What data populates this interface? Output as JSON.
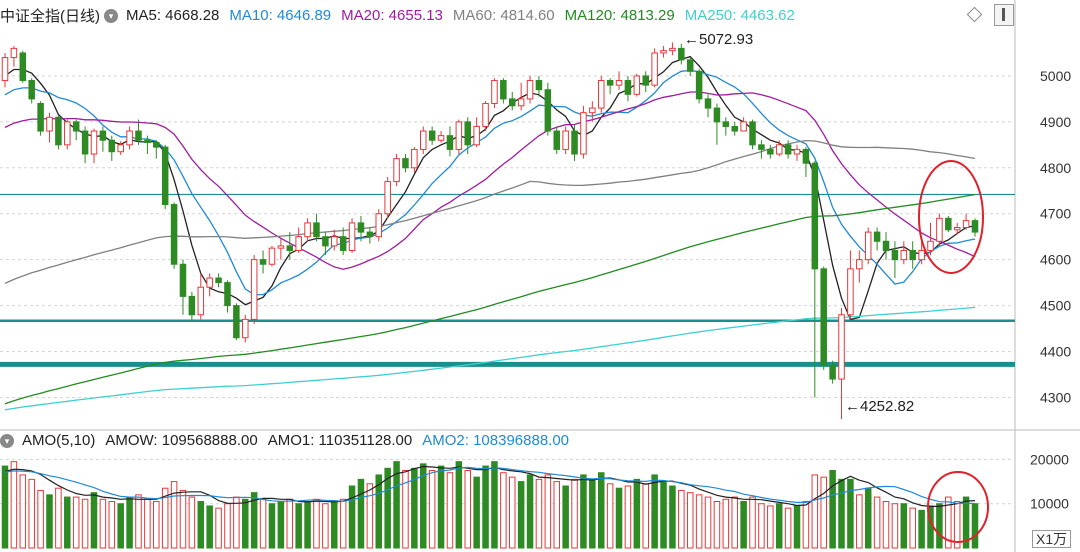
{
  "header": {
    "title": "中证全指(日线)",
    "ma": [
      {
        "label": "MA5: 4668.28",
        "color": "#222222"
      },
      {
        "label": "MA10: 4646.89",
        "color": "#1f8ad6"
      },
      {
        "label": "MA20: 4655.13",
        "color": "#a01ba0"
      },
      {
        "label": "MA60: 4814.60",
        "color": "#808080"
      },
      {
        "label": "MA120: 4813.29",
        "color": "#228b22"
      },
      {
        "label": "MA250: 4463.62",
        "color": "#3fd0d0"
      }
    ]
  },
  "volume_header": {
    "title": "AMO(5,10)",
    "amow": "AMOW: 109568888.00",
    "amo1": "AMO1: 110351128.00",
    "amo2": "AMO2: 108396888.00"
  },
  "annotations": {
    "high": "5072.93",
    "low": "4252.82"
  },
  "unit_label": "X1万",
  "colors": {
    "up": "#e8383b",
    "down": "#2e8b24",
    "support": "#1a8f8f",
    "circle": "#e0202a"
  },
  "chart_data": {
    "type": "candlestick",
    "y_axis_price": {
      "ticks": [
        4300,
        4400,
        4500,
        4600,
        4700,
        4800,
        4900,
        5000
      ],
      "range": [
        4240,
        5100
      ]
    },
    "y_axis_volume": {
      "ticks": [
        10000,
        20000
      ],
      "range": [
        0,
        21000
      ]
    },
    "horizontal_lines": [
      4742,
      4467,
      4372
    ],
    "candles": [
      [
        4990,
        5040,
        5050,
        4975
      ],
      [
        5040,
        5060,
        5065,
        5020
      ],
      [
        5050,
        4990,
        5055,
        4985
      ],
      [
        4990,
        4950,
        4995,
        4940
      ],
      [
        4940,
        4880,
        4945,
        4870
      ],
      [
        4880,
        4910,
        4920,
        4855
      ],
      [
        4910,
        4850,
        4915,
        4840
      ],
      [
        4850,
        4900,
        4905,
        4840
      ],
      [
        4900,
        4880,
        4905,
        4860
      ],
      [
        4880,
        4830,
        4890,
        4810
      ],
      [
        4830,
        4880,
        4885,
        4810
      ],
      [
        4880,
        4860,
        4890,
        4835
      ],
      [
        4860,
        4835,
        4870,
        4815
      ],
      [
        4835,
        4850,
        4858,
        4828
      ],
      [
        4850,
        4880,
        4890,
        4840
      ],
      [
        4880,
        4860,
        4905,
        4850
      ],
      [
        4860,
        4855,
        4870,
        4830
      ],
      [
        4855,
        4845,
        4860,
        4820
      ],
      [
        4845,
        4720,
        4850,
        4710
      ],
      [
        4720,
        4590,
        4725,
        4580
      ],
      [
        4590,
        4520,
        4600,
        4480
      ],
      [
        4520,
        4480,
        4530,
        4465
      ],
      [
        4480,
        4540,
        4570,
        4470
      ],
      [
        4540,
        4560,
        4570,
        4520
      ],
      [
        4560,
        4550,
        4570,
        4540
      ],
      [
        4550,
        4500,
        4555,
        4485
      ],
      [
        4500,
        4430,
        4505,
        4425
      ],
      [
        4430,
        4470,
        4480,
        4420
      ],
      [
        4470,
        4600,
        4610,
        4460
      ],
      [
        4600,
        4590,
        4620,
        4570
      ],
      [
        4590,
        4625,
        4630,
        4585
      ],
      [
        4625,
        4630,
        4645,
        4600
      ],
      [
        4630,
        4620,
        4660,
        4600
      ],
      [
        4620,
        4650,
        4670,
        4615
      ],
      [
        4650,
        4680,
        4690,
        4640
      ],
      [
        4680,
        4650,
        4700,
        4640
      ],
      [
        4650,
        4630,
        4660,
        4610
      ],
      [
        4630,
        4650,
        4665,
        4620
      ],
      [
        4650,
        4620,
        4670,
        4610
      ],
      [
        4620,
        4680,
        4690,
        4615
      ],
      [
        4680,
        4660,
        4695,
        4640
      ],
      [
        4660,
        4650,
        4670,
        4635
      ],
      [
        4650,
        4700,
        4710,
        4640
      ],
      [
        4700,
        4770,
        4780,
        4690
      ],
      [
        4770,
        4820,
        4830,
        4760
      ],
      [
        4820,
        4800,
        4830,
        4790
      ],
      [
        4800,
        4840,
        4845,
        4790
      ],
      [
        4840,
        4880,
        4890,
        4830
      ],
      [
        4880,
        4860,
        4890,
        4850
      ],
      [
        4860,
        4870,
        4880,
        4855
      ],
      [
        4870,
        4840,
        4890,
        4825
      ],
      [
        4840,
        4900,
        4905,
        4830
      ],
      [
        4900,
        4850,
        4910,
        4830
      ],
      [
        4850,
        4890,
        4910,
        4845
      ],
      [
        4890,
        4940,
        4945,
        4880
      ],
      [
        4940,
        4990,
        4995,
        4930
      ],
      [
        4990,
        4950,
        4995,
        4940
      ],
      [
        4950,
        4935,
        4965,
        4925
      ],
      [
        4935,
        4950,
        4985,
        4925
      ],
      [
        4950,
        4990,
        5000,
        4940
      ],
      [
        4990,
        4970,
        5000,
        4955
      ],
      [
        4970,
        4880,
        4985,
        4870
      ],
      [
        4880,
        4840,
        4890,
        4830
      ],
      [
        4840,
        4880,
        4890,
        4830
      ],
      [
        4880,
        4830,
        4895,
        4815
      ],
      [
        4830,
        4920,
        4935,
        4820
      ],
      [
        4920,
        4930,
        4945,
        4900
      ],
      [
        4930,
        4990,
        5000,
        4920
      ],
      [
        4990,
        4980,
        4995,
        4960
      ],
      [
        4980,
        4990,
        5010,
        4970
      ],
      [
        4990,
        4960,
        5000,
        4945
      ],
      [
        4960,
        5000,
        5005,
        4955
      ],
      [
        5000,
        4980,
        5010,
        4965
      ],
      [
        4980,
        5050,
        5060,
        4975
      ],
      [
        5050,
        5055,
        5065,
        5040
      ],
      [
        5055,
        5060,
        5072.93,
        5045
      ],
      [
        5060,
        5035,
        5070,
        5025
      ],
      [
        5035,
        5010,
        5040,
        5000
      ],
      [
        5010,
        4950,
        5015,
        4940
      ],
      [
        4950,
        4930,
        4960,
        4910
      ],
      [
        4930,
        4900,
        4940,
        4850
      ],
      [
        4900,
        4890,
        4910,
        4870
      ],
      [
        4890,
        4880,
        4900,
        4870
      ],
      [
        4880,
        4900,
        4910,
        4880
      ],
      [
        4900,
        4850,
        4905,
        4840
      ],
      [
        4850,
        4840,
        4860,
        4820
      ],
      [
        4840,
        4830,
        4850,
        4820
      ],
      [
        4830,
        4850,
        4860,
        4825
      ],
      [
        4850,
        4830,
        4860,
        4820
      ],
      [
        4830,
        4840,
        4850,
        4815
      ],
      [
        4840,
        4810,
        4845,
        4780
      ],
      [
        4810,
        4580,
        4815,
        4300
      ],
      [
        4580,
        4370,
        4585,
        4360
      ],
      [
        4370,
        4340,
        4380,
        4330
      ],
      [
        4340,
        4480,
        4495,
        4252.82
      ],
      [
        4480,
        4580,
        4620,
        4470
      ],
      [
        4580,
        4600,
        4620,
        4550
      ],
      [
        4600,
        4660,
        4670,
        4590
      ],
      [
        4660,
        4640,
        4670,
        4620
      ],
      [
        4640,
        4620,
        4660,
        4600
      ],
      [
        4620,
        4600,
        4640,
        4560
      ],
      [
        4600,
        4620,
        4640,
        4590
      ],
      [
        4620,
        4600,
        4640,
        4580
      ],
      [
        4600,
        4620,
        4640,
        4590
      ],
      [
        4620,
        4640,
        4680,
        4610
      ],
      [
        4640,
        4690,
        4700,
        4630
      ],
      [
        4690,
        4665,
        4695,
        4660
      ],
      [
        4665,
        4670,
        4680,
        4655
      ],
      [
        4670,
        4685,
        4700,
        4665
      ],
      [
        4685,
        4660,
        4690,
        4650
      ]
    ],
    "volume": [
      [
        18500,
        0
      ],
      [
        19500,
        1
      ],
      [
        16500,
        1
      ],
      [
        15500,
        1
      ],
      [
        13000,
        1
      ],
      [
        12000,
        0
      ],
      [
        13500,
        1
      ],
      [
        11500,
        0
      ],
      [
        11500,
        1
      ],
      [
        11000,
        1
      ],
      [
        12500,
        0
      ],
      [
        11000,
        1
      ],
      [
        10500,
        1
      ],
      [
        10000,
        0
      ],
      [
        11500,
        0
      ],
      [
        12000,
        1
      ],
      [
        11000,
        1
      ],
      [
        10500,
        1
      ],
      [
        13500,
        1
      ],
      [
        15000,
        1
      ],
      [
        13000,
        1
      ],
      [
        11500,
        1
      ],
      [
        10500,
        0
      ],
      [
        9500,
        0
      ],
      [
        9000,
        1
      ],
      [
        10000,
        1
      ],
      [
        11500,
        1
      ],
      [
        11000,
        0
      ],
      [
        12500,
        0
      ],
      [
        11000,
        1
      ],
      [
        10000,
        0
      ],
      [
        10500,
        0
      ],
      [
        11000,
        1
      ],
      [
        10000,
        0
      ],
      [
        10500,
        0
      ],
      [
        11000,
        1
      ],
      [
        10000,
        1
      ],
      [
        10500,
        0
      ],
      [
        11000,
        1
      ],
      [
        14000,
        0
      ],
      [
        15500,
        0
      ],
      [
        14500,
        1
      ],
      [
        16500,
        0
      ],
      [
        18000,
        0
      ],
      [
        19500,
        0
      ],
      [
        17500,
        1
      ],
      [
        18000,
        0
      ],
      [
        19000,
        0
      ],
      [
        17500,
        1
      ],
      [
        18500,
        0
      ],
      [
        17000,
        1
      ],
      [
        19500,
        0
      ],
      [
        17500,
        1
      ],
      [
        16000,
        0
      ],
      [
        18500,
        0
      ],
      [
        19500,
        0
      ],
      [
        17000,
        1
      ],
      [
        16000,
        1
      ],
      [
        15000,
        0
      ],
      [
        16500,
        0
      ],
      [
        15500,
        1
      ],
      [
        16500,
        1
      ],
      [
        15000,
        1
      ],
      [
        14000,
        0
      ],
      [
        15500,
        1
      ],
      [
        16500,
        0
      ],
      [
        15500,
        0
      ],
      [
        17000,
        0
      ],
      [
        14500,
        1
      ],
      [
        13500,
        0
      ],
      [
        14000,
        1
      ],
      [
        15500,
        0
      ],
      [
        14500,
        1
      ],
      [
        16500,
        0
      ],
      [
        15000,
        0
      ],
      [
        14000,
        0
      ],
      [
        13000,
        1
      ],
      [
        12500,
        1
      ],
      [
        12000,
        1
      ],
      [
        11500,
        1
      ],
      [
        10500,
        1
      ],
      [
        11000,
        1
      ],
      [
        11500,
        1
      ],
      [
        10500,
        0
      ],
      [
        11500,
        1
      ],
      [
        10000,
        1
      ],
      [
        9500,
        1
      ],
      [
        10000,
        0
      ],
      [
        9000,
        1
      ],
      [
        9500,
        0
      ],
      [
        10500,
        1
      ],
      [
        16500,
        1
      ],
      [
        16000,
        1
      ],
      [
        17500,
        0
      ],
      [
        15500,
        0
      ],
      [
        15500,
        0
      ],
      [
        12000,
        1
      ],
      [
        13500,
        0
      ],
      [
        11500,
        1
      ],
      [
        10500,
        1
      ],
      [
        10000,
        1
      ],
      [
        10000,
        0
      ],
      [
        9000,
        1
      ],
      [
        8500,
        0
      ],
      [
        9500,
        0
      ],
      [
        10000,
        0
      ],
      [
        11500,
        1
      ],
      [
        10500,
        1
      ],
      [
        11500,
        0
      ],
      [
        10000,
        0
      ]
    ]
  }
}
